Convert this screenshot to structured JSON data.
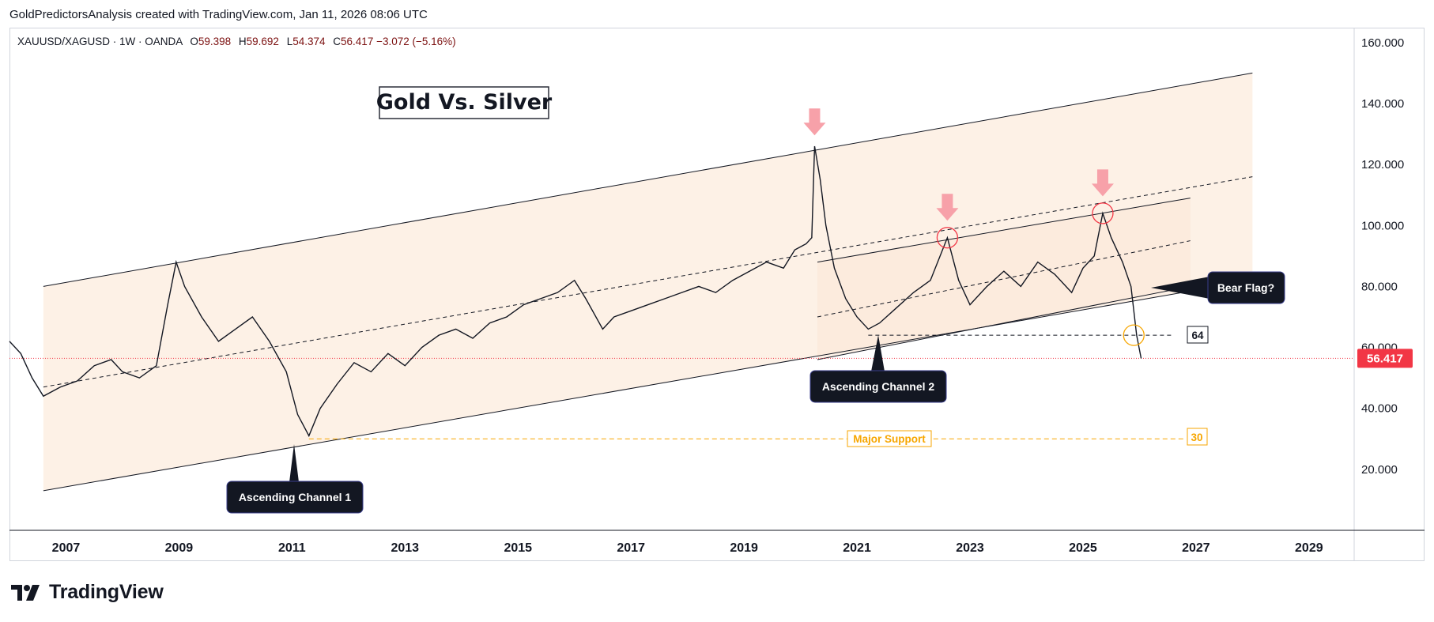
{
  "header": {
    "caption": "GoldPredictorsAnalysis created with TradingView.com, Jan 11, 2026 08:06 UTC"
  },
  "legend": {
    "symbol": "XAUUSD/XAGUSD · 1W · OANDA",
    "open_label": "O",
    "open": "59.398",
    "high_label": "H",
    "high": "59.692",
    "low_label": "L",
    "low": "54.374",
    "close_label": "C",
    "close": "56.417",
    "change": "−3.072 (−5.16%)"
  },
  "footer": {
    "brand": "TradingView"
  },
  "colors": {
    "price_line": "#131722",
    "last_price": "#f23645",
    "channel_fill": "#fdf1e6",
    "support": "#f7a600",
    "marker_pink": "#f7a1a9",
    "circle_red": "#f23645",
    "callout_bg": "#131722"
  },
  "chart_data": {
    "type": "line",
    "title": "Gold Vs. Silver",
    "xlabel": "",
    "ylabel": "",
    "xlim": [
      2006.0,
      2029.8
    ],
    "ylim": [
      0,
      161
    ],
    "x_ticks": [
      "2007",
      "2009",
      "2011",
      "2013",
      "2015",
      "2017",
      "2019",
      "2021",
      "2023",
      "2025",
      "2027",
      "2029"
    ],
    "y_ticks": [
      "160.000",
      "140.000",
      "120.000",
      "100.000",
      "80.000",
      "60.000",
      "40.000",
      "20.000"
    ],
    "last_price": "56.417",
    "series": [
      {
        "x": [
          2006.0,
          2006.2,
          2006.4,
          2006.6,
          2006.9,
          2007.2,
          2007.5,
          2007.8,
          2008.0,
          2008.3,
          2008.6,
          2008.8,
          2008.95,
          2009.1,
          2009.4,
          2009.7,
          2010.0,
          2010.3,
          2010.6,
          2010.9,
          2011.1,
          2011.3,
          2011.5,
          2011.8,
          2012.1,
          2012.4,
          2012.7,
          2013.0,
          2013.3,
          2013.6,
          2013.9,
          2014.2,
          2014.5,
          2014.8,
          2015.1,
          2015.4,
          2015.7,
          2016.0,
          2016.2,
          2016.5,
          2016.7,
          2017.0,
          2017.3,
          2017.6,
          2017.9,
          2018.2,
          2018.5,
          2018.8,
          2019.1,
          2019.4,
          2019.7,
          2019.9,
          2020.1,
          2020.2,
          2020.25,
          2020.35,
          2020.45,
          2020.6,
          2020.8,
          2021.0,
          2021.2,
          2021.4,
          2021.7,
          2022.0,
          2022.3,
          2022.6,
          2022.8,
          2023.0,
          2023.3,
          2023.6,
          2023.9,
          2024.2,
          2024.5,
          2024.8,
          2025.0,
          2025.2,
          2025.35,
          2025.5,
          2025.7,
          2025.85,
          2025.95,
          2026.03
        ],
        "values": [
          62,
          58,
          50,
          44,
          47,
          49,
          54,
          56,
          52,
          50,
          54,
          74,
          88,
          80,
          70,
          62,
          66,
          70,
          62,
          52,
          38,
          31,
          40,
          48,
          55,
          52,
          58,
          54,
          60,
          64,
          66,
          63,
          68,
          70,
          74,
          76,
          78,
          82,
          76,
          66,
          70,
          72,
          74,
          76,
          78,
          80,
          78,
          82,
          85,
          88,
          86,
          92,
          94,
          96,
          126,
          115,
          100,
          86,
          76,
          70,
          66,
          68,
          73,
          78,
          82,
          96,
          82,
          74,
          80,
          85,
          80,
          88,
          84,
          78,
          86,
          90,
          104,
          96,
          88,
          80,
          64,
          56.4
        ]
      }
    ],
    "annotations": {
      "channel1_label": "Ascending Channel 1",
      "channel2_label": "Ascending Channel 2",
      "bear_flag_label": "Bear Flag?",
      "support_label": "Major Support",
      "support_value": "30",
      "level_label": "64"
    }
  }
}
